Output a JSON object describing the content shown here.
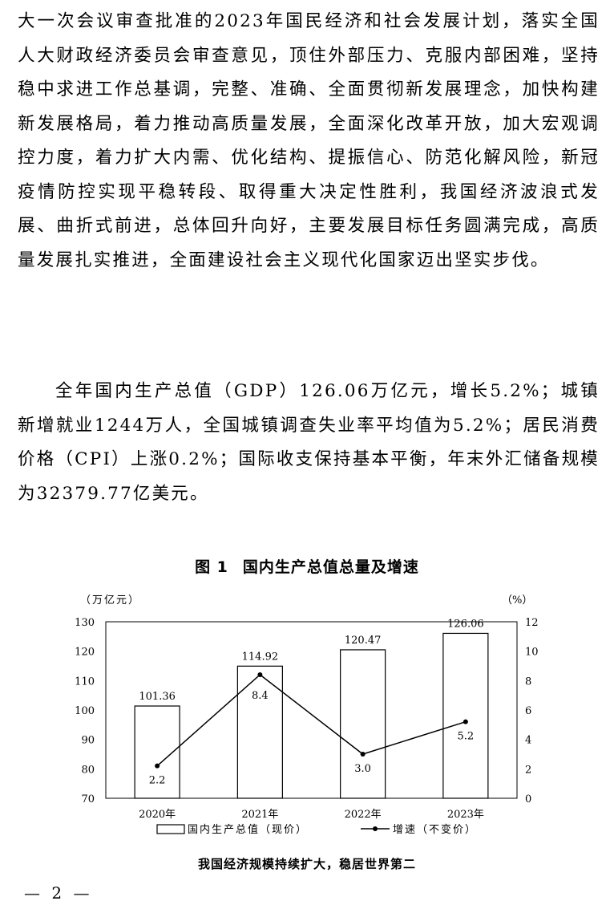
{
  "paragraphs": [
    "大一次会议审查批准的2023年国民经济和社会发展计划，落实全国人大财政经济委员会审查意见，顶住外部压力、克服内部困难，坚持稳中求进工作总基调，完整、准确、全面贯彻新发展理念，加快构建新发展格局，着力推动高质量发展，全面深化改革开放，加大宏观调控力度，着力扩大内需、优化结构、提振信心、防范化解风险，新冠疫情防控实现平稳转段、取得重大决定性胜利，我国经济波浪式发展、曲折式前进，总体回升向好，主要发展目标任务圆满完成，高质量发展扎实推进，全面建设社会主义现代化国家迈出坚实步伐。",
    "全年国内生产总值（GDP）126.06万亿元，增长5.2%；城镇新增就业1244万人，全国城镇调查失业率平均值为5.2%；居民消费价格（CPI）上涨0.2%；国际收支保持基本平衡，年末外汇储备规模为32379.77亿美元。"
  ],
  "figure": {
    "number": "图 1",
    "title": "国内生产总值总量及增速",
    "caption": "我国经济规模持续扩大，稳居世界第二"
  },
  "page_number": "— 2 —",
  "chart_data": {
    "type": "bar",
    "categories": [
      "2020年",
      "2021年",
      "2022年",
      "2023年"
    ],
    "series": [
      {
        "name": "国内生产总值（现价）",
        "type": "bar",
        "axis": "left",
        "values": [
          101.36,
          114.92,
          120.47,
          126.06
        ]
      },
      {
        "name": "增速（不变价）",
        "type": "line",
        "axis": "right",
        "values": [
          2.2,
          8.4,
          3.0,
          5.2
        ]
      }
    ],
    "value_labels": {
      "bars": [
        "101.36",
        "114.92",
        "120.47",
        "126.06"
      ],
      "line": [
        "2.2",
        "8.4",
        "3.0",
        "5.2"
      ]
    },
    "y_left": {
      "label": "（万亿元）",
      "min": 70,
      "max": 130,
      "ticks": [
        "70",
        "80",
        "90",
        "100",
        "110",
        "120",
        "130"
      ]
    },
    "y_right": {
      "label": "（%）",
      "min": 0,
      "max": 12,
      "ticks": [
        "0",
        "2",
        "4",
        "6",
        "8",
        "10",
        "12"
      ]
    },
    "legend_position": "bottom",
    "grid": false
  }
}
